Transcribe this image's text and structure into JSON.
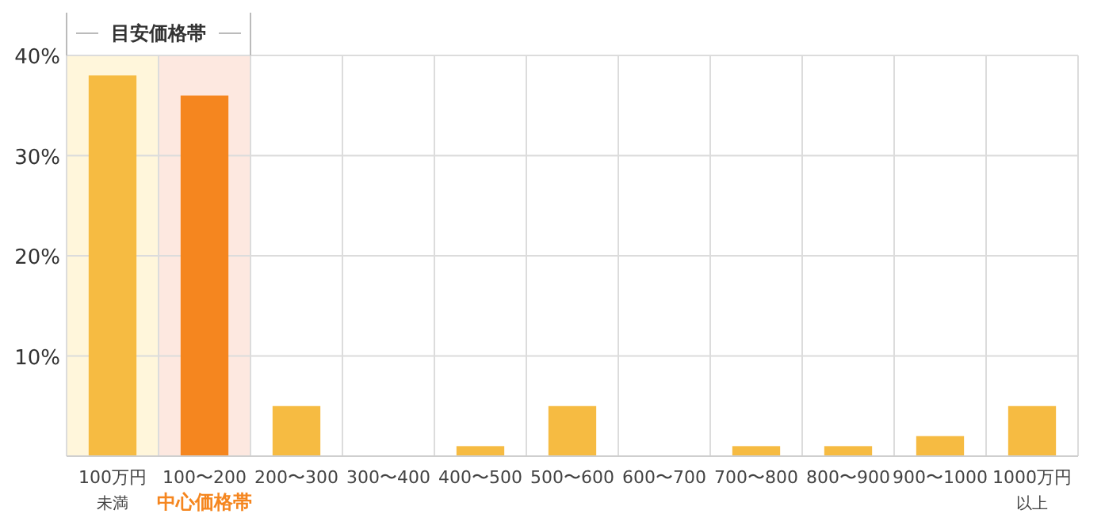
{
  "chart_data": {
    "type": "bar",
    "categories": [
      "100万円未満",
      "100〜200",
      "200〜300",
      "300〜400",
      "400〜500",
      "500〜600",
      "600〜700",
      "700〜800",
      "800〜900",
      "900〜1000",
      "1000万円以上"
    ],
    "values": [
      38,
      36,
      5,
      0,
      1,
      5,
      0,
      1,
      1,
      2,
      5
    ],
    "colors": [
      "#f6bb42",
      "#f5861f",
      "#f6bb42",
      "#f6bb42",
      "#f6bb42",
      "#f6bb42",
      "#f6bb42",
      "#f6bb42",
      "#f6bb42",
      "#f6bb42",
      "#f6bb42"
    ],
    "ylim": [
      0,
      40
    ],
    "yticks": [
      {
        "value": 10,
        "label": "10%"
      },
      {
        "value": 20,
        "label": "20%"
      },
      {
        "value": 30,
        "label": "30%"
      },
      {
        "value": 40,
        "label": "40%"
      }
    ],
    "grid": true,
    "bands": [
      {
        "axis": "x",
        "from": "100万円未満",
        "to": "100万円未満",
        "color": "#fff6db"
      },
      {
        "axis": "x",
        "from": "100〜200",
        "to": "100〜200",
        "color": "#fde8e0"
      }
    ],
    "annotations": [
      "目安価格帯",
      "中心価格帯"
    ]
  }
}
